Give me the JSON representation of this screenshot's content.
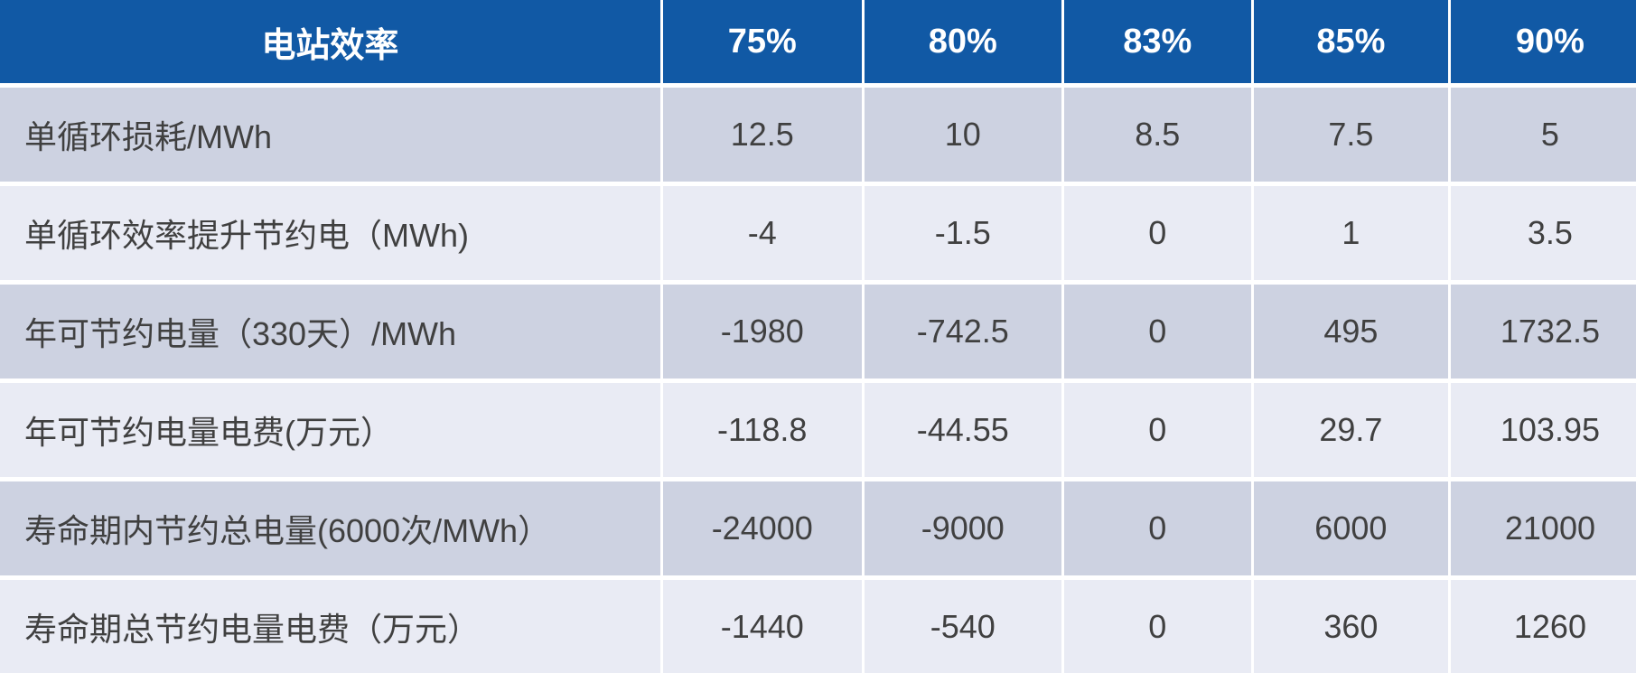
{
  "table": {
    "header": {
      "label": "电站效率",
      "columns": [
        "75%",
        "80%",
        "83%",
        "85%",
        "90%"
      ]
    },
    "rows": [
      {
        "label": "单循环损耗/MWh",
        "values": [
          "12.5",
          "10",
          "8.5",
          "7.5",
          "5"
        ]
      },
      {
        "label": "单循环效率提升节约电（MWh)",
        "values": [
          "-4",
          "-1.5",
          "0",
          "1",
          "3.5"
        ]
      },
      {
        "label": "年可节约电量（330天）/MWh",
        "values": [
          "-1980",
          "-742.5",
          "0",
          "495",
          "1732.5"
        ]
      },
      {
        "label": "年可节约电量电费(万元）",
        "values": [
          "-118.8",
          "-44.55",
          "0",
          "29.7",
          "103.95"
        ]
      },
      {
        "label": "寿命期内节约总电量(6000次/MWh）",
        "values": [
          "-24000",
          "-9000",
          "0",
          "6000",
          "21000"
        ]
      },
      {
        "label": "寿命期总节约电量电费（万元）",
        "values": [
          "-1440",
          "-540",
          "0",
          "360",
          "1260"
        ]
      }
    ]
  },
  "colors": {
    "header_bg": "#1159A5",
    "header_text": "#FFFFFF",
    "row_odd": "#CDD2E1",
    "row_even": "#E9EBF4",
    "text": "#404040",
    "separator": "#FFFFFF"
  },
  "chart_data": {
    "type": "table",
    "title": "电站效率",
    "categories": [
      "75%",
      "80%",
      "83%",
      "85%",
      "90%"
    ],
    "series": [
      {
        "name": "单循环损耗/MWh",
        "values": [
          12.5,
          10,
          8.5,
          7.5,
          5
        ]
      },
      {
        "name": "单循环效率提升节约电（MWh)",
        "values": [
          -4,
          -1.5,
          0,
          1,
          3.5
        ]
      },
      {
        "name": "年可节约电量（330天）/MWh",
        "values": [
          -1980,
          -742.5,
          0,
          495,
          1732.5
        ]
      },
      {
        "name": "年可节约电量电费(万元）",
        "values": [
          -118.8,
          -44.55,
          0,
          29.7,
          103.95
        ]
      },
      {
        "name": "寿命期内节约总电量(6000次/MWh）",
        "values": [
          -24000,
          -9000,
          0,
          6000,
          21000
        ]
      },
      {
        "name": "寿命期总节约电量电费（万元）",
        "values": [
          -1440,
          -540,
          0,
          360,
          1260
        ]
      }
    ]
  }
}
